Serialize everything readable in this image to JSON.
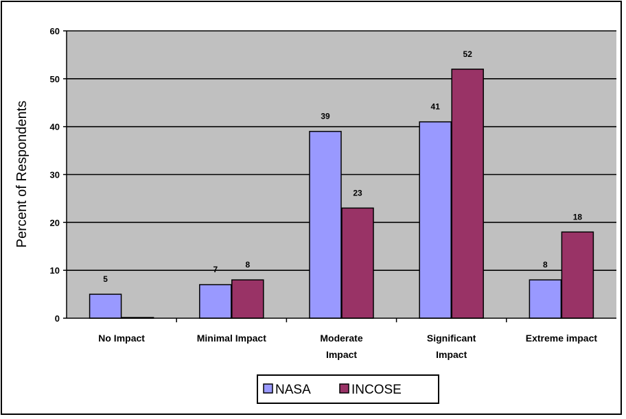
{
  "chart_data": {
    "type": "bar",
    "categories": [
      [
        "No Impact"
      ],
      [
        "Minimal Impact"
      ],
      [
        "Moderate",
        "Impact"
      ],
      [
        "Significant",
        "Impact"
      ],
      [
        "Extreme impact"
      ]
    ],
    "series": [
      {
        "name": "NASA",
        "color": "#9999ff",
        "values": [
          5,
          7,
          39,
          41,
          8
        ],
        "labels": [
          "5",
          "7",
          "39",
          "41",
          "8"
        ]
      },
      {
        "name": "INCOSE",
        "color": "#993366",
        "values": [
          0,
          8,
          23,
          52,
          18
        ],
        "labels": [
          "",
          "8",
          "23",
          "52",
          "18"
        ]
      }
    ],
    "ylabel": "Percent of Respondents",
    "ylim": [
      0,
      60
    ],
    "yticks": [
      0,
      10,
      20,
      30,
      40,
      50,
      60
    ],
    "grid": true,
    "plot_background": "#c0c0c0",
    "legend_position": "bottom"
  }
}
